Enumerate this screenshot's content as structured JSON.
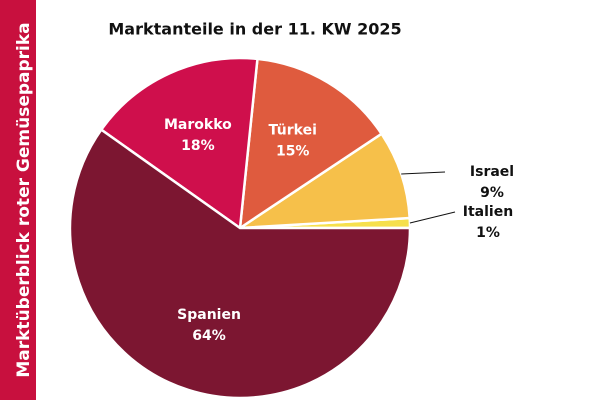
{
  "chart_data": {
    "type": "pie",
    "sidebar": "Marktüberblick roter Gemüsepaprika",
    "title": "Marktanteile in der 11. KW 2025",
    "categories": [
      "Italien",
      "Israel",
      "Türkei",
      "Marokko",
      "Spanien"
    ],
    "values": [
      1,
      9,
      15,
      18,
      64
    ],
    "value_labels": [
      "1%",
      "9%",
      "15%",
      "18%",
      "64%"
    ],
    "colors": [
      "#f6e04c",
      "#f6c04a",
      "#df5b3e",
      "#cf0f4c",
      "#7c1631"
    ]
  }
}
